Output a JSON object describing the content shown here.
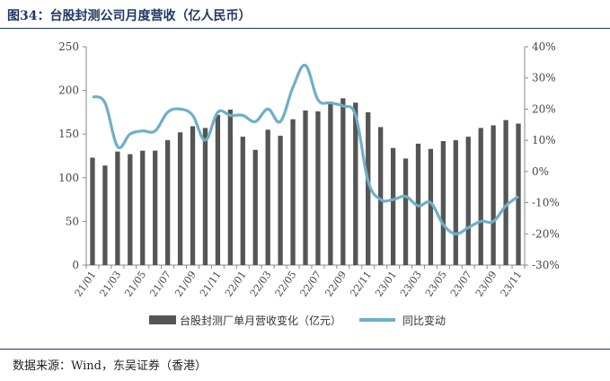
{
  "title": "图34：台股封测公司月度营收（亿人民币）",
  "source": "数据来源：Wind，东吴证券（香港）",
  "chart_data": {
    "type": "bar",
    "months": [
      "21/01",
      "21/02",
      "21/03",
      "21/04",
      "21/05",
      "21/06",
      "21/07",
      "21/08",
      "21/09",
      "21/10",
      "21/11",
      "21/12",
      "22/01",
      "22/02",
      "22/03",
      "22/04",
      "22/05",
      "22/06",
      "22/07",
      "22/08",
      "22/09",
      "22/10",
      "22/11",
      "22/12",
      "23/01",
      "23/02",
      "23/03",
      "23/04",
      "23/05",
      "23/06",
      "23/07",
      "23/08",
      "23/09",
      "23/10",
      "23/11"
    ],
    "xtick_labels": [
      "21/01",
      "21/03",
      "21/05",
      "21/07",
      "21/09",
      "21/11",
      "22/01",
      "22/03",
      "22/05",
      "22/07",
      "22/09",
      "22/11",
      "23/01",
      "23/03",
      "23/05",
      "23/07",
      "23/09",
      "23/11"
    ],
    "series": [
      {
        "name": "台股封测厂单月营收变化（亿元）",
        "type": "bar",
        "axis": "left",
        "color": "#555555",
        "values": [
          123,
          114,
          130,
          127,
          131,
          131,
          143,
          152,
          159,
          157,
          172,
          178,
          147,
          132,
          155,
          148,
          167,
          177,
          176,
          187,
          191,
          186,
          175,
          158,
          134,
          122,
          139,
          133,
          142,
          143,
          147,
          157,
          160,
          166,
          162
        ]
      },
      {
        "name": "同比变动",
        "type": "line",
        "axis": "right",
        "color": "#6fafc7",
        "values": [
          24,
          22,
          8,
          12,
          13,
          13,
          19,
          20,
          18,
          10,
          19,
          18,
          18,
          16,
          20,
          16,
          27,
          34,
          23,
          22,
          21,
          18,
          -3,
          -9,
          -9,
          -8,
          -11,
          -10,
          -17,
          -20,
          -18,
          -16,
          -16,
          -11,
          -8
        ]
      }
    ],
    "left_axis": {
      "ylim": [
        0,
        250
      ],
      "ticks": [
        "0",
        "50",
        "100",
        "150",
        "200",
        "250"
      ]
    },
    "right_axis": {
      "ylim": [
        -30,
        40
      ],
      "ticks": [
        "-30%",
        "-20%",
        "-10%",
        "0%",
        "10%",
        "20%",
        "30%",
        "40%"
      ]
    },
    "legend": {
      "position": "bottom"
    }
  }
}
